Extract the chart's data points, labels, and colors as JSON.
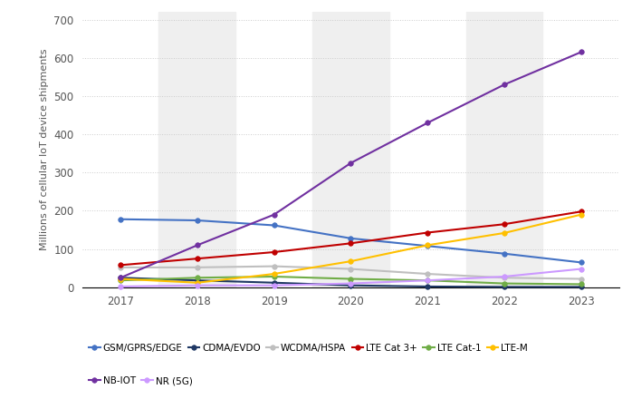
{
  "years": [
    2017,
    2018,
    2019,
    2020,
    2021,
    2022,
    2023
  ],
  "series": {
    "GSM/GPRS/EDGE": {
      "values": [
        178,
        175,
        162,
        128,
        108,
        88,
        65
      ],
      "color": "#4472C4",
      "marker": "o"
    },
    "CDMA/EVDO": {
      "values": [
        25,
        18,
        12,
        5,
        2,
        1,
        1
      ],
      "color": "#1F3864",
      "marker": "o"
    },
    "WCDMA/HSPA": {
      "values": [
        52,
        52,
        55,
        48,
        35,
        25,
        22
      ],
      "color": "#BFBFBF",
      "marker": "o"
    },
    "LTE Cat 3+": {
      "values": [
        58,
        75,
        92,
        115,
        143,
        165,
        198
      ],
      "color": "#C00000",
      "marker": "o"
    },
    "LTE Cat-1": {
      "values": [
        18,
        25,
        28,
        22,
        18,
        10,
        8
      ],
      "color": "#70AD47",
      "marker": "o"
    },
    "LTE-M": {
      "values": [
        22,
        12,
        35,
        68,
        110,
        142,
        190
      ],
      "color": "#FFC000",
      "marker": "o"
    },
    "NB-IOT": {
      "values": [
        25,
        110,
        190,
        325,
        430,
        530,
        615
      ],
      "color": "#7030A0",
      "marker": "o"
    },
    "NR (5G)": {
      "values": [
        2,
        5,
        5,
        10,
        18,
        28,
        48
      ],
      "color": "#CC99FF",
      "marker": "o"
    }
  },
  "ylabel": "Millions of cellular IoT device shipments",
  "ylim": [
    0,
    720
  ],
  "yticks": [
    0,
    100,
    200,
    300,
    400,
    500,
    600,
    700
  ],
  "xlim": [
    2016.5,
    2023.5
  ],
  "background_color": "#FFFFFF",
  "band_color": "#EFEFEF",
  "grid_color": "#CCCCCC",
  "legend_order": [
    "GSM/GPRS/EDGE",
    "CDMA/EVDO",
    "WCDMA/HSPA",
    "LTE Cat 3+",
    "LTE Cat-1",
    "LTE-M",
    "NB-IOT",
    "NR (5G)"
  ],
  "band_years": [
    2018,
    2020,
    2022
  ]
}
